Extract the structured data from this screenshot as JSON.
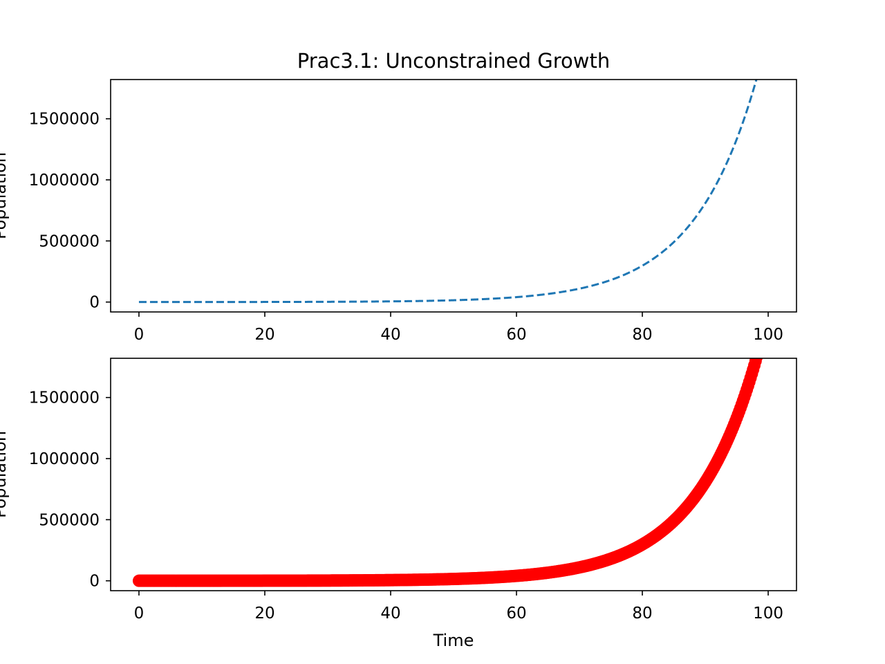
{
  "chart_data": [
    {
      "type": "line",
      "title": "Prac3.1: Unconstrained Growth",
      "xlabel": "",
      "ylabel": "Population",
      "xlim": [
        -4.5,
        104.5
      ],
      "ylim": [
        -81000,
        1821000
      ],
      "xticks": [
        0,
        20,
        40,
        60,
        80,
        100
      ],
      "xtick_labels": [
        "0",
        "20",
        "40",
        "60",
        "80",
        "100"
      ],
      "yticks": [
        0,
        500000,
        1000000,
        1500000
      ],
      "ytick_labels": [
        "0",
        "500000",
        "1000000",
        "1500000"
      ],
      "grid": false,
      "line_style": "dashed",
      "color": "#1f77b4",
      "model": {
        "initial": 100,
        "rate": 0.1,
        "dt": 0.005
      },
      "x": [
        0,
        10,
        20,
        30,
        40,
        50,
        60,
        70,
        80,
        90,
        100
      ],
      "y": [
        100,
        272,
        739,
        2009,
        5460,
        14841,
        40343,
        109663,
        298096,
        810296,
        1720000
      ]
    },
    {
      "type": "scatter",
      "title": "",
      "xlabel": "Time",
      "ylabel": "Population",
      "xlim": [
        -4.5,
        104.5
      ],
      "ylim": [
        -81000,
        1821000
      ],
      "xticks": [
        0,
        20,
        40,
        60,
        80,
        100
      ],
      "xtick_labels": [
        "0",
        "20",
        "40",
        "60",
        "80",
        "100"
      ],
      "yticks": [
        0,
        500000,
        1000000,
        1500000
      ],
      "ytick_labels": [
        "0",
        "500000",
        "1000000",
        "1500000"
      ],
      "grid": false,
      "marker": "circle",
      "color": "#ff0000",
      "model": {
        "initial": 100,
        "rate": 0.1,
        "dt": 0.005
      },
      "x": [
        0,
        10,
        20,
        30,
        40,
        50,
        60,
        70,
        80,
        90,
        100
      ],
      "y": [
        100,
        272,
        739,
        2009,
        5460,
        14841,
        40343,
        109663,
        298096,
        810296,
        1720000
      ]
    }
  ]
}
